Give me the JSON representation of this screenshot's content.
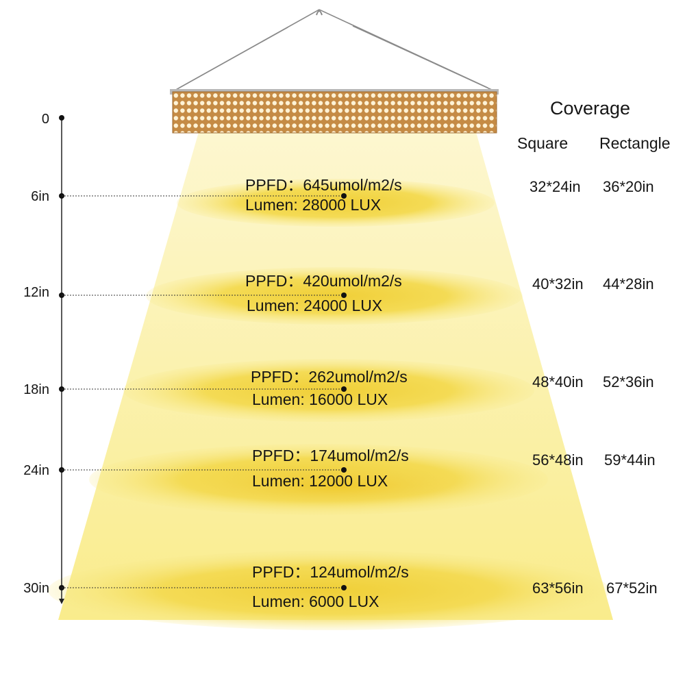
{
  "coverage": {
    "title": "Coverage",
    "columns": [
      "Square",
      "Rectangle"
    ]
  },
  "levels": [
    {
      "height": "0"
    },
    {
      "height": "6in",
      "ppfd": "PPFD：645umol/m2/s",
      "lumen": "Lumen: 28000 LUX",
      "square": "32*24in",
      "rectangle": "36*20in"
    },
    {
      "height": "12in",
      "ppfd": "PPFD：420umol/m2/s",
      "lumen": "Lumen: 24000 LUX",
      "square": "40*32in",
      "rectangle": "44*28in"
    },
    {
      "height": "18in",
      "ppfd": "PPFD：262umol/m2/s",
      "lumen": "Lumen: 16000 LUX",
      "square": "48*40in",
      "rectangle": "52*36in"
    },
    {
      "height": "24in",
      "ppfd": "PPFD：174umol/m2/s",
      "lumen": "Lumen: 12000 LUX",
      "square": "56*48in",
      "rectangle": "59*44in"
    },
    {
      "height": "30in",
      "ppfd": "PPFD：124umol/m2/s",
      "lumen": "Lumen: 6000 LUX",
      "square": "63*56in",
      "rectangle": "67*52in"
    }
  ],
  "colors": {
    "beam_top": "#fdf6c8",
    "beam_bottom": "#f8ec8a",
    "pool": "#f2d64a",
    "panel": "#d9a55a",
    "panel_led": "#fff6df",
    "axis": "#222222"
  }
}
